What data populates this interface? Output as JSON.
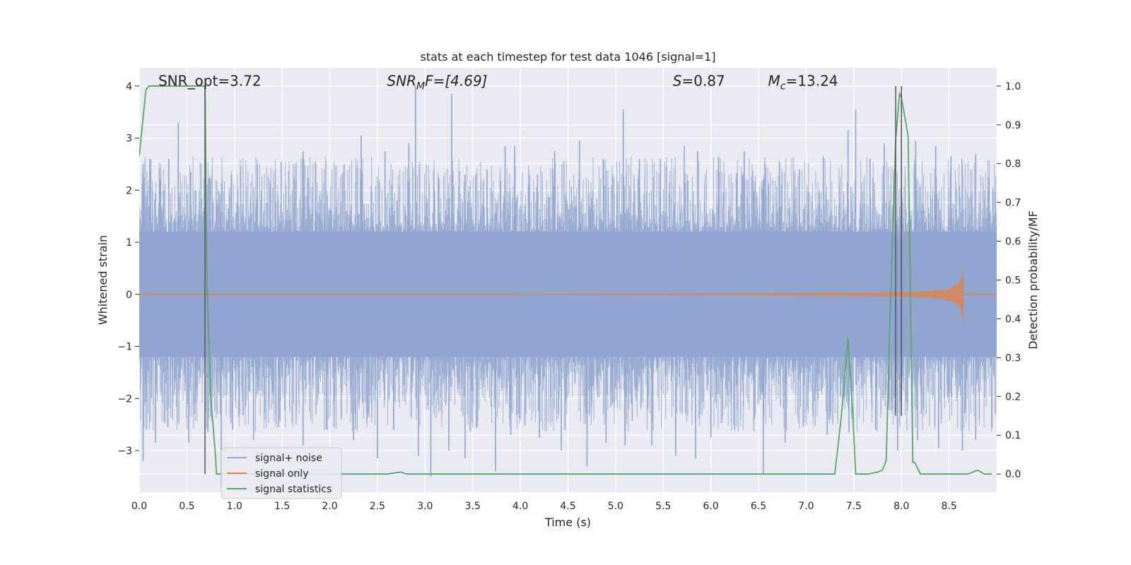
{
  "chart_data": {
    "type": "line",
    "title": "stats at each timestep for test data 1046 [signal=1]",
    "xlabel": "Time (s)",
    "ylabel": "Whitened strain",
    "y2label": "Detection probability/MF",
    "xlim": [
      0.0,
      9.0
    ],
    "ylim": [
      -3.8,
      4.35
    ],
    "y2lim": [
      -0.047,
      1.047
    ],
    "x_ticks": [
      "0.0",
      "0.5",
      "1.0",
      "1.5",
      "2.0",
      "2.5",
      "3.0",
      "3.5",
      "4.0",
      "4.5",
      "5.0",
      "5.5",
      "6.0",
      "6.5",
      "7.0",
      "7.5",
      "8.0",
      "8.5"
    ],
    "y_ticks": [
      "−3",
      "−2",
      "−1",
      "0",
      "1",
      "2",
      "3",
      "4"
    ],
    "y2_ticks": [
      "0.0",
      "0.1",
      "0.2",
      "0.3",
      "0.4",
      "0.5",
      "0.6",
      "0.7",
      "0.8",
      "0.9",
      "1.0"
    ],
    "grid": true,
    "legend_position": "lower-left",
    "annotations": [
      {
        "kind": "plain",
        "text": "SNR_opt=3.72",
        "x": 0.2,
        "y": 4.1
      },
      {
        "kind": "snrmf",
        "base": "SNR",
        "sub": "M",
        "rest": "F=[4.69]",
        "x": 2.6,
        "y": 4.1
      },
      {
        "kind": "sym",
        "sym": "S",
        "rest": "=0.87",
        "x": 5.6,
        "y": 4.1
      },
      {
        "kind": "mc",
        "sym": "M",
        "sub": "c",
        "rest": "=13.24",
        "x": 6.6,
        "y": 4.1
      }
    ],
    "vlines": [
      {
        "x": 0.69,
        "y2_min": 0.0,
        "y2_max": 1.0
      },
      {
        "x": 7.94,
        "y2_min": 0.15,
        "y2_max": 1.0
      },
      {
        "x": 8.0,
        "y2_min": 0.15,
        "y2_max": 1.0
      }
    ],
    "series": [
      {
        "name": "signal+ noise",
        "color": "#8fa5cf",
        "axis": "left",
        "kind": "noise",
        "band_limit": 1.2,
        "peaks": [
          [
            0.04,
            2.5
          ],
          [
            0.12,
            2.6
          ],
          [
            0.22,
            2.2
          ],
          [
            0.31,
            2.6
          ],
          [
            0.41,
            3.3
          ],
          [
            0.54,
            2.35
          ],
          [
            0.7,
            1.75
          ],
          [
            0.97,
            2.3
          ],
          [
            1.24,
            2.5
          ],
          [
            1.49,
            2.55
          ],
          [
            1.72,
            2.75
          ],
          [
            1.85,
            2.55
          ],
          [
            2.15,
            2.5
          ],
          [
            2.33,
            3.05
          ],
          [
            2.58,
            2.75
          ],
          [
            2.83,
            2.9
          ],
          [
            2.9,
            4.0
          ],
          [
            3.14,
            2.25
          ],
          [
            3.28,
            3.85
          ],
          [
            3.42,
            2.3
          ],
          [
            3.65,
            2.4
          ],
          [
            3.84,
            2.85
          ],
          [
            3.94,
            2.85
          ],
          [
            4.18,
            2.3
          ],
          [
            4.36,
            2.75
          ],
          [
            4.62,
            2.95
          ],
          [
            4.87,
            2.6
          ],
          [
            5.08,
            3.55
          ],
          [
            5.25,
            2.6
          ],
          [
            5.47,
            2.6
          ],
          [
            5.72,
            2.85
          ],
          [
            5.86,
            2.75
          ],
          [
            6.08,
            2.65
          ],
          [
            6.35,
            2.75
          ],
          [
            6.55,
            2.15
          ],
          [
            6.72,
            2.55
          ],
          [
            6.93,
            2.4
          ],
          [
            7.18,
            2.65
          ],
          [
            7.44,
            3.15
          ],
          [
            7.52,
            3.55
          ],
          [
            7.67,
            2.6
          ],
          [
            7.82,
            2.9
          ],
          [
            8.0,
            2.95
          ],
          [
            8.15,
            2.95
          ],
          [
            8.36,
            2.85
          ],
          [
            8.52,
            2.65
          ],
          [
            8.78,
            2.7
          ],
          [
            8.92,
            2.25
          ]
        ],
        "troughs": [
          [
            0.04,
            -3.2
          ],
          [
            0.17,
            -2.85
          ],
          [
            0.3,
            -2.55
          ],
          [
            0.52,
            -2.85
          ],
          [
            0.72,
            -2.65
          ],
          [
            0.86,
            -3.7
          ],
          [
            0.98,
            -2.6
          ],
          [
            1.2,
            -2.8
          ],
          [
            1.46,
            -2.55
          ],
          [
            1.72,
            -2.9
          ],
          [
            1.97,
            -2.6
          ],
          [
            2.25,
            -2.8
          ],
          [
            2.5,
            -3.15
          ],
          [
            2.67,
            -2.6
          ],
          [
            2.93,
            -3.1
          ],
          [
            3.06,
            -3.5
          ],
          [
            3.25,
            -3.0
          ],
          [
            3.42,
            -3.15
          ],
          [
            3.74,
            -3.4
          ],
          [
            3.9,
            -2.7
          ],
          [
            4.2,
            -2.75
          ],
          [
            4.43,
            -3.0
          ],
          [
            4.7,
            -3.3
          ],
          [
            4.9,
            -2.85
          ],
          [
            5.1,
            -2.9
          ],
          [
            5.38,
            -2.9
          ],
          [
            5.63,
            -3.1
          ],
          [
            5.84,
            -3.15
          ],
          [
            6.0,
            -2.75
          ],
          [
            6.25,
            -2.6
          ],
          [
            6.55,
            -3.45
          ],
          [
            6.78,
            -2.85
          ],
          [
            6.97,
            -2.55
          ],
          [
            7.22,
            -2.7
          ],
          [
            7.45,
            -2.65
          ],
          [
            7.73,
            -2.6
          ],
          [
            7.96,
            -3.0
          ],
          [
            8.17,
            -2.8
          ],
          [
            8.39,
            -2.95
          ],
          [
            8.64,
            -3.0
          ],
          [
            8.78,
            -2.8
          ],
          [
            8.95,
            -2.55
          ]
        ]
      },
      {
        "name": "signal only",
        "color": "#dd8452",
        "axis": "left",
        "kind": "chirp",
        "start": 4.0,
        "end": 8.65,
        "peak_amplitude": 0.65
      },
      {
        "name": "signal statistics",
        "color": "#55a868",
        "axis": "right",
        "kind": "line",
        "x": [
          0.0,
          0.07,
          0.1,
          0.14,
          0.3,
          0.5,
          0.6,
          0.69,
          0.71,
          0.75,
          0.8,
          0.81,
          1.0,
          2.0,
          2.6,
          2.75,
          2.8,
          2.86,
          3.0,
          4.0,
          5.0,
          6.0,
          7.0,
          7.3,
          7.37,
          7.44,
          7.49,
          7.52,
          7.55,
          7.65,
          7.75,
          7.8,
          7.84,
          7.88,
          7.94,
          7.98,
          8.0,
          8.05,
          8.07,
          8.12,
          8.14,
          8.2,
          8.5,
          8.7,
          8.75,
          8.8,
          8.87,
          8.95
        ],
        "y": [
          0.82,
          0.99,
          1.0,
          1.0,
          1.0,
          1.0,
          1.0,
          1.0,
          0.5,
          0.2,
          0.05,
          0.0,
          0.0,
          0.0,
          0.0,
          0.005,
          0.0,
          0.0,
          0.0,
          0.0,
          0.0,
          0.0,
          0.0,
          0.0,
          0.15,
          0.35,
          0.15,
          0.0,
          0.0,
          0.0,
          0.005,
          0.01,
          0.035,
          0.4,
          0.86,
          0.98,
          0.97,
          0.9,
          0.87,
          0.03,
          0.03,
          0.0,
          0.0,
          0.0,
          0.005,
          0.01,
          0.0,
          0.0
        ]
      }
    ]
  }
}
